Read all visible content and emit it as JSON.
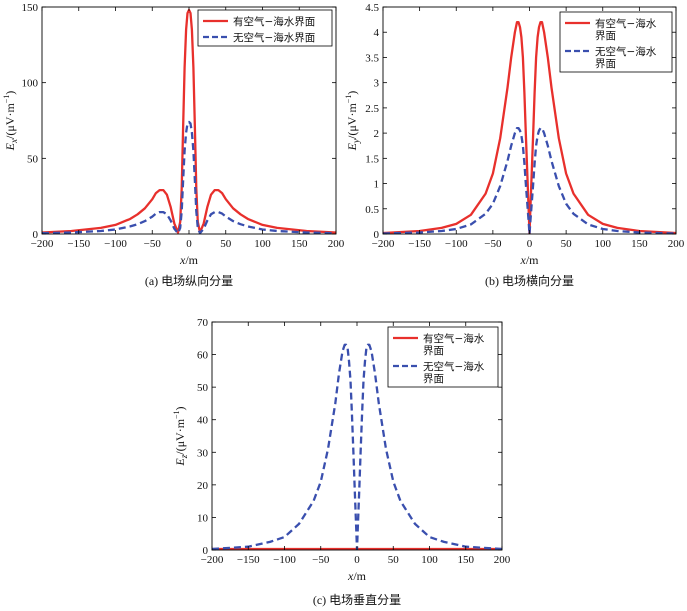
{
  "chart_data": [
    {
      "type": "line",
      "caption": "(a) 电场纵向分量",
      "xlabel": "x/m",
      "ylabel": "Ex/(μV·m⁻¹)",
      "ylabel_main": "E",
      "ylabel_sub": "x",
      "ylabel_rest": "/(μV·m",
      "ylabel_sup": "−1",
      "ylabel_end": ")",
      "xlim": [
        -200,
        200
      ],
      "ylim": [
        0,
        150
      ],
      "xticks": [
        "−200",
        "−150",
        "−100",
        "−50",
        "0",
        "50",
        "100",
        "150",
        "200"
      ],
      "yticks": [
        "0",
        "50",
        "100",
        "150"
      ],
      "legend_position": "top-right",
      "legend_lines": [
        [
          "有空气−海水界面"
        ],
        [
          "无空气−海水界面"
        ]
      ],
      "series": [
        {
          "name": "有空气−海水界面",
          "color": "#e8302c",
          "dash": "solid",
          "x": [
            -200,
            -160,
            -120,
            -100,
            -80,
            -70,
            -60,
            -50,
            -45,
            -40,
            -35,
            -30,
            -25,
            -20,
            -15,
            -12,
            -10,
            -8,
            -6,
            -4,
            -2,
            0,
            2,
            4,
            6,
            8,
            10,
            12,
            15,
            20,
            25,
            30,
            35,
            40,
            45,
            50,
            60,
            70,
            80,
            100,
            120,
            160,
            200
          ],
          "y": [
            1,
            2,
            4,
            6,
            10,
            13,
            17,
            23,
            27,
            29,
            29,
            26,
            18,
            7,
            1,
            8,
            30,
            70,
            110,
            135,
            146,
            148,
            146,
            135,
            110,
            70,
            30,
            8,
            1,
            7,
            18,
            26,
            29,
            29,
            27,
            23,
            17,
            13,
            10,
            6,
            4,
            2,
            1
          ]
        },
        {
          "name": "无空气−海水界面",
          "color": "#3a4fae",
          "dash": "dashed",
          "x": [
            -200,
            -160,
            -120,
            -100,
            -80,
            -70,
            -60,
            -50,
            -45,
            -40,
            -35,
            -30,
            -25,
            -20,
            -15,
            -12,
            -10,
            -8,
            -6,
            -4,
            -2,
            0,
            2,
            4,
            6,
            8,
            10,
            12,
            15,
            20,
            25,
            30,
            35,
            40,
            45,
            50,
            60,
            70,
            80,
            100,
            120,
            160,
            200
          ],
          "y": [
            0.5,
            1,
            2,
            3,
            5,
            6.5,
            8.5,
            11.5,
            13.5,
            14.5,
            14.5,
            13,
            9,
            3.5,
            0.5,
            4,
            15,
            35,
            55,
            67,
            73,
            74,
            73,
            67,
            55,
            35,
            15,
            4,
            0.5,
            3.5,
            9,
            13,
            14.5,
            14.5,
            13.5,
            11.5,
            8.5,
            6.5,
            5,
            3,
            2,
            1,
            0.5
          ]
        }
      ]
    },
    {
      "type": "line",
      "caption": "(b) 电场横向分量",
      "xlabel": "x/m",
      "ylabel": "Ey/(μV·m⁻¹)",
      "ylabel_main": "E",
      "ylabel_sub": "y",
      "ylabel_rest": "/(μV·m",
      "ylabel_sup": "−1",
      "ylabel_end": ")",
      "xlim": [
        -200,
        200
      ],
      "ylim": [
        0,
        4.5
      ],
      "xticks": [
        "−200",
        "−150",
        "−100",
        "−50",
        "0",
        "50",
        "100",
        "150",
        "200"
      ],
      "yticks": [
        "0",
        "0.5",
        "1",
        "1.5",
        "2",
        "2.5",
        "3",
        "3.5",
        "4",
        "4.5"
      ],
      "legend_position": "top-right",
      "legend_lines": [
        [
          "有空气−海水",
          "界面"
        ],
        [
          "无空气−海水",
          "界面"
        ]
      ],
      "series": [
        {
          "name": "有空气−海水界面",
          "color": "#e8302c",
          "dash": "solid",
          "x": [
            -200,
            -150,
            -120,
            -100,
            -80,
            -60,
            -50,
            -40,
            -30,
            -25,
            -20,
            -17,
            -15,
            -13,
            -11,
            -9,
            -7,
            -5,
            -3,
            -1,
            0,
            1,
            3,
            5,
            7,
            9,
            11,
            13,
            15,
            17,
            20,
            25,
            30,
            40,
            50,
            60,
            80,
            100,
            120,
            150,
            200
          ],
          "y": [
            0.02,
            0.06,
            0.12,
            0.2,
            0.38,
            0.8,
            1.2,
            1.9,
            2.9,
            3.5,
            4.0,
            4.2,
            4.2,
            4.1,
            3.9,
            3.5,
            2.8,
            2.0,
            1.2,
            0.4,
            0,
            0.4,
            1.2,
            2.0,
            2.8,
            3.5,
            3.9,
            4.1,
            4.2,
            4.2,
            4.0,
            3.5,
            2.9,
            1.9,
            1.2,
            0.8,
            0.38,
            0.2,
            0.12,
            0.06,
            0.02
          ]
        },
        {
          "name": "无空气−海水界面",
          "color": "#3a4fae",
          "dash": "dashed",
          "x": [
            -200,
            -150,
            -120,
            -100,
            -80,
            -60,
            -50,
            -40,
            -30,
            -25,
            -20,
            -17,
            -15,
            -13,
            -11,
            -9,
            -7,
            -5,
            -3,
            -1,
            0,
            1,
            3,
            5,
            7,
            9,
            11,
            13,
            15,
            17,
            20,
            25,
            30,
            40,
            50,
            60,
            80,
            100,
            120,
            150,
            200
          ],
          "y": [
            0.01,
            0.03,
            0.06,
            0.1,
            0.19,
            0.4,
            0.6,
            0.95,
            1.45,
            1.75,
            2.0,
            2.1,
            2.1,
            2.05,
            1.95,
            1.75,
            1.4,
            1.0,
            0.6,
            0.2,
            0,
            0.2,
            0.6,
            1.0,
            1.4,
            1.75,
            1.95,
            2.05,
            2.1,
            2.1,
            2.0,
            1.75,
            1.45,
            0.95,
            0.6,
            0.4,
            0.19,
            0.1,
            0.06,
            0.03,
            0.01
          ]
        }
      ]
    },
    {
      "type": "line",
      "caption": "(c) 电场垂直分量",
      "xlabel": "x/m",
      "ylabel": "Ez/(μV·m⁻¹)",
      "ylabel_main": "E",
      "ylabel_sub": "z",
      "ylabel_rest": "/(μV·m",
      "ylabel_sup": "−1",
      "ylabel_end": ")",
      "xlim": [
        -200,
        200
      ],
      "ylim": [
        0,
        70
      ],
      "xticks": [
        "−200",
        "−150",
        "−100",
        "−50",
        "0",
        "50",
        "100",
        "150",
        "200"
      ],
      "yticks": [
        "0",
        "10",
        "20",
        "30",
        "40",
        "50",
        "60",
        "70"
      ],
      "legend_position": "top-right",
      "legend_lines": [
        [
          "有空气−海水",
          "界面"
        ],
        [
          "无空气−海水",
          "界面"
        ]
      ],
      "series": [
        {
          "name": "有空气−海水界面",
          "color": "#e8302c",
          "dash": "solid",
          "x": [
            -200,
            200
          ],
          "y": [
            0.3,
            0.3
          ]
        },
        {
          "name": "无空气−海水界面",
          "color": "#3a4fae",
          "dash": "dashed",
          "x": [
            -200,
            -150,
            -120,
            -100,
            -80,
            -60,
            -50,
            -40,
            -30,
            -25,
            -20,
            -17,
            -15,
            -13,
            -11,
            -9,
            -7,
            -5,
            -3,
            -1,
            0,
            1,
            3,
            5,
            7,
            9,
            11,
            13,
            15,
            17,
            20,
            25,
            30,
            40,
            50,
            60,
            80,
            100,
            120,
            150,
            200
          ],
          "y": [
            0.3,
            1,
            2.5,
            4,
            8,
            15,
            21,
            31,
            45,
            54,
            61,
            63,
            63,
            62,
            58,
            52,
            42,
            30,
            18,
            6,
            0,
            6,
            18,
            30,
            42,
            52,
            58,
            62,
            63,
            63,
            61,
            54,
            45,
            31,
            21,
            15,
            8,
            4,
            2.5,
            1,
            0.3
          ]
        }
      ]
    }
  ]
}
